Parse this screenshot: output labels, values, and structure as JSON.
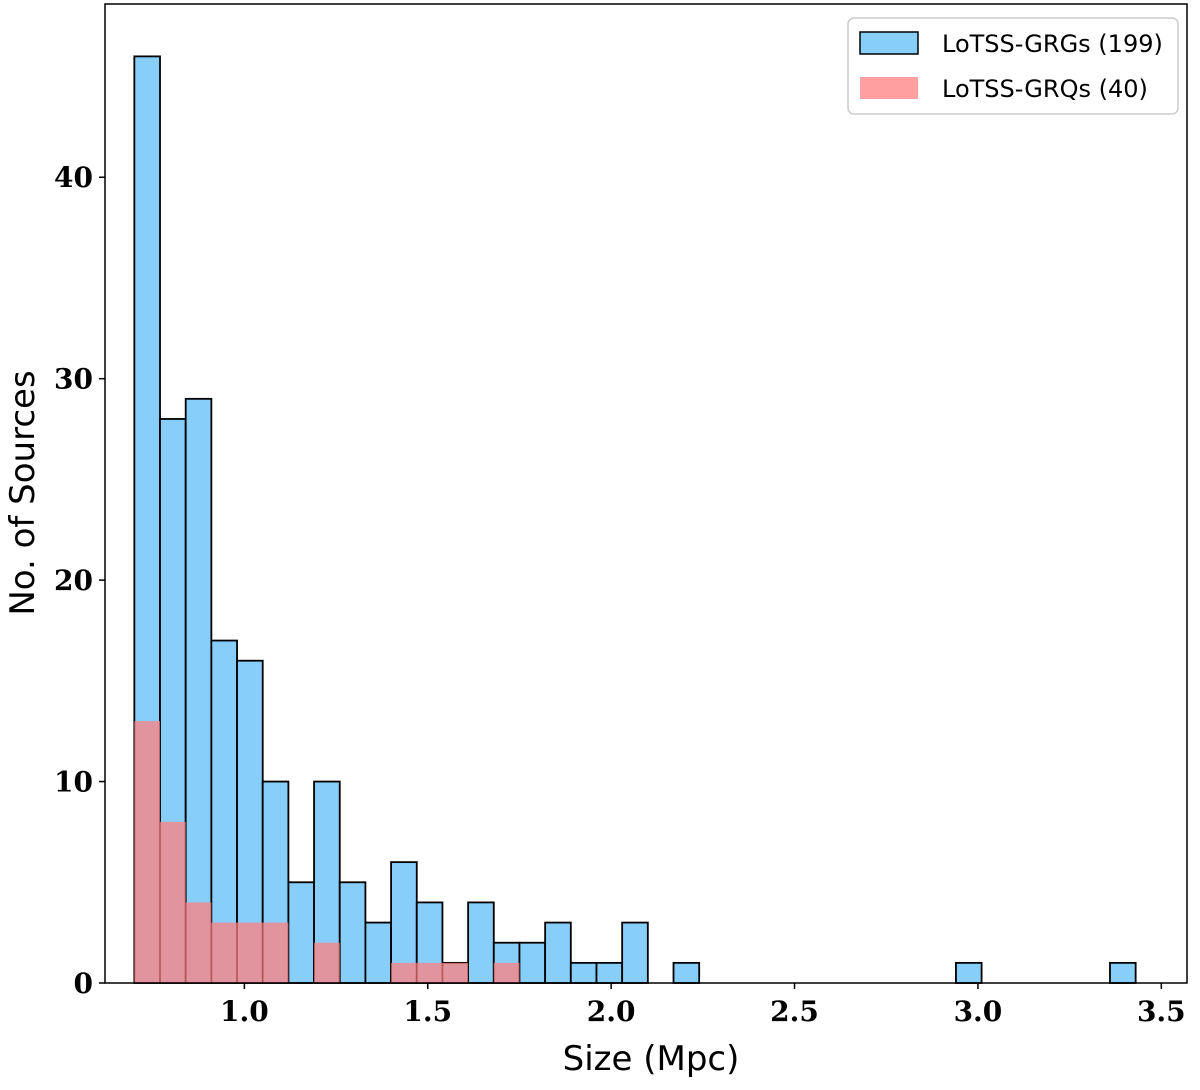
{
  "chart_data": {
    "type": "bar",
    "title": "",
    "xlabel": "Size (Mpc)",
    "ylabel": "No. of Sources",
    "xlim": [
      0.62,
      3.57
    ],
    "ylim": [
      0,
      48.6
    ],
    "xticks": [
      "1.0",
      "1.5",
      "2.0",
      "2.5",
      "3.0",
      "3.5"
    ],
    "yticks": [
      "0",
      "10",
      "20",
      "30",
      "40"
    ],
    "bin_width": 0.07,
    "legend_position": "top-right",
    "series": [
      {
        "name": "LoTSS-GRGs (199)",
        "color": "#87CEFA",
        "edge_color": "#000000",
        "bin_starts": [
          0.7,
          0.77,
          0.84,
          0.91,
          0.98,
          1.05,
          1.12,
          1.19,
          1.26,
          1.33,
          1.4,
          1.47,
          1.54,
          1.61,
          1.68,
          1.75,
          1.82,
          1.89,
          1.96,
          2.03,
          2.1,
          2.17,
          2.24,
          2.31,
          2.38,
          2.45,
          2.52,
          2.59,
          2.66,
          2.73,
          2.8,
          2.87,
          2.94,
          3.01,
          3.08,
          3.15,
          3.22,
          3.29,
          3.36
        ],
        "values": [
          46,
          28,
          29,
          17,
          16,
          10,
          5,
          10,
          5,
          3,
          6,
          4,
          1,
          4,
          2,
          2,
          3,
          1,
          1,
          3,
          0,
          1,
          0,
          0,
          0,
          0,
          0,
          0,
          0,
          0,
          0,
          0,
          1,
          0,
          0,
          0,
          0,
          0,
          1
        ]
      },
      {
        "name": "LoTSS-GRQs (40)",
        "color": "#FF7F7F",
        "edge_color": "#000000",
        "bin_starts": [
          0.7,
          0.77,
          0.84,
          0.91,
          0.98,
          1.05,
          1.12,
          1.19,
          1.26,
          1.33,
          1.4,
          1.47,
          1.54,
          1.61,
          1.68
        ],
        "values": [
          13,
          8,
          4,
          3,
          3,
          3,
          0,
          2,
          0,
          0,
          1,
          1,
          1,
          0,
          1
        ]
      }
    ]
  }
}
